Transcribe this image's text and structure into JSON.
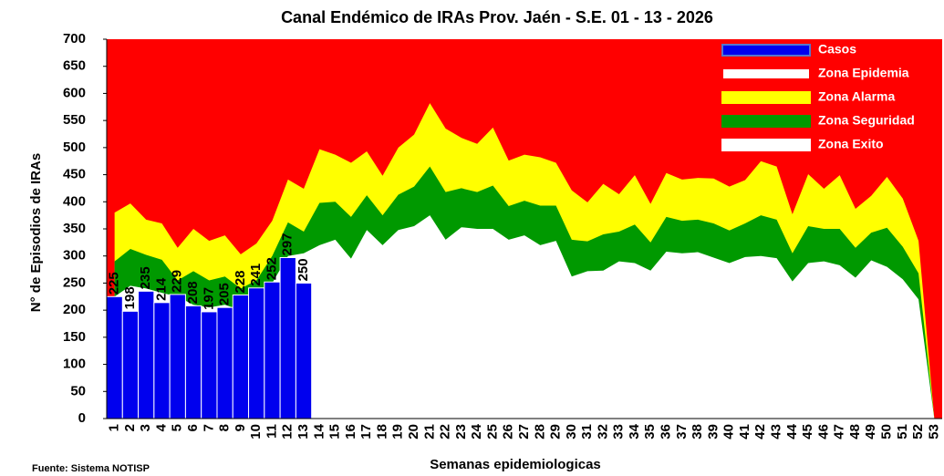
{
  "chart_data": {
    "type": "endemic_channel",
    "title": "Canal Endémico de IRAs Prov. Jaén - S.E. 01 - 13 - 2026",
    "x_label": "Semanas epidemiologicas",
    "y_label": "N° de Episodios de IRAs",
    "source": "Fuente: Sistema NOTISP",
    "categories": [
      "1",
      "2",
      "3",
      "4",
      "5",
      "6",
      "7",
      "8",
      "9",
      "10",
      "11",
      "12",
      "13",
      "14",
      "15",
      "16",
      "17",
      "18",
      "19",
      "20",
      "21",
      "22",
      "23",
      "24",
      "25",
      "26",
      "27",
      "28",
      "29",
      "30",
      "31",
      "32",
      "33",
      "34",
      "35",
      "36",
      "37",
      "38",
      "39",
      "40",
      "41",
      "42",
      "43",
      "44",
      "45",
      "46",
      "47",
      "48",
      "49",
      "50",
      "51",
      "52",
      "53"
    ],
    "ylim": [
      0,
      700
    ],
    "yticks": [
      0,
      50,
      100,
      150,
      200,
      250,
      300,
      350,
      400,
      450,
      500,
      550,
      600,
      650,
      700
    ],
    "grid": false,
    "legend": "top-right",
    "series": [
      {
        "name": "Casos",
        "color": "#0000ee",
        "kind": "bar",
        "values": [
          225,
          198,
          235,
          214,
          229,
          208,
          197,
          205,
          228,
          241,
          252,
          297,
          250,
          null,
          null,
          null,
          null,
          null,
          null,
          null,
          null,
          null,
          null,
          null,
          null,
          null,
          null,
          null,
          null,
          null,
          null,
          null,
          null,
          null,
          null,
          null,
          null,
          null,
          null,
          null,
          null,
          null,
          null,
          null,
          null,
          null,
          null,
          null,
          null,
          null,
          null,
          null,
          null
        ]
      },
      {
        "name": "Zona Epidemia",
        "color": "#ff0000",
        "kind": "background"
      },
      {
        "name": "Zona Alarma",
        "color": "#ffff00",
        "kind": "area",
        "values": [
          380,
          397,
          367,
          360,
          315,
          350,
          328,
          338,
          303,
          323,
          365,
          441,
          424,
          497,
          487,
          472,
          493,
          448,
          500,
          524,
          582,
          535,
          518,
          507,
          537,
          476,
          487,
          482,
          472,
          421,
          399,
          433,
          414,
          449,
          396,
          453,
          441,
          444,
          443,
          428,
          440,
          475,
          465,
          377,
          451,
          424,
          449,
          387,
          411,
          446,
          406,
          328,
          0
        ]
      },
      {
        "name": "Zona Seguridad",
        "color": "#009900",
        "kind": "area",
        "values": [
          290,
          313,
          302,
          293,
          255,
          272,
          255,
          262,
          240,
          255,
          300,
          362,
          345,
          398,
          400,
          372,
          412,
          375,
          413,
          428,
          465,
          418,
          425,
          418,
          430,
          392,
          402,
          393,
          393,
          330,
          327,
          340,
          345,
          358,
          325,
          372,
          365,
          367,
          360,
          347,
          360,
          375,
          367,
          305,
          355,
          350,
          350,
          315,
          343,
          352,
          317,
          268,
          0
        ]
      },
      {
        "name": "Zona Exito",
        "color": "#ffffff",
        "kind": "area",
        "values": [
          225,
          245,
          240,
          232,
          225,
          210,
          205,
          210,
          200,
          228,
          250,
          300,
          305,
          320,
          330,
          295,
          348,
          320,
          348,
          355,
          375,
          330,
          353,
          350,
          350,
          330,
          338,
          320,
          328,
          262,
          272,
          273,
          290,
          287,
          273,
          308,
          305,
          307,
          297,
          287,
          298,
          300,
          296,
          253,
          287,
          290,
          283,
          260,
          292,
          280,
          257,
          220,
          0
        ]
      }
    ]
  }
}
